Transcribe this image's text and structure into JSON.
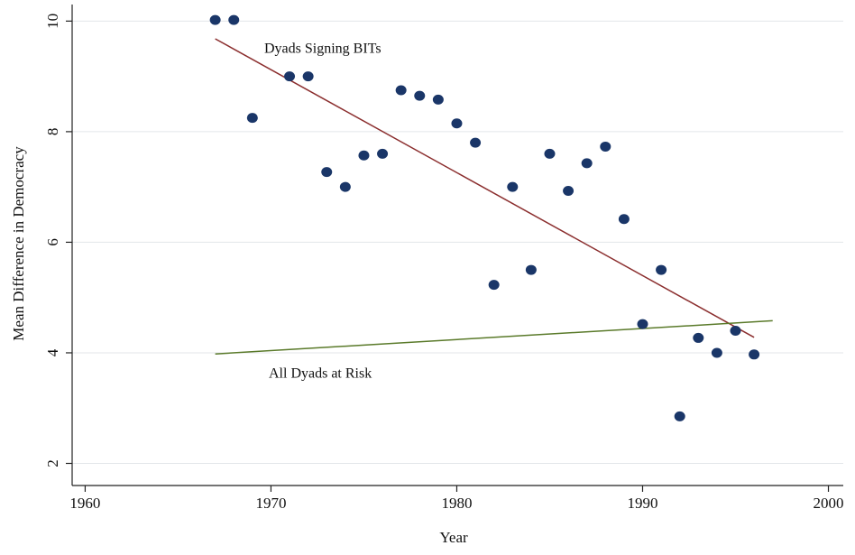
{
  "chart_data": {
    "type": "scatter",
    "x_label": "Year",
    "y_label": "Mean Difference in Democracy",
    "x": [
      1967,
      1968,
      1969,
      1971,
      1972,
      1973,
      1974,
      1975,
      1976,
      1977,
      1978,
      1979,
      1980,
      1981,
      1982,
      1983,
      1984,
      1985,
      1986,
      1987,
      1988,
      1989,
      1990,
      1991,
      1992,
      1993,
      1994,
      1995,
      1996
    ],
    "values": [
      10.02,
      10.02,
      8.25,
      9.0,
      9.0,
      7.27,
      7.0,
      7.57,
      7.6,
      8.75,
      8.65,
      8.58,
      8.15,
      7.8,
      5.23,
      7.0,
      5.5,
      7.6,
      6.93,
      7.43,
      7.73,
      6.42,
      4.52,
      5.5,
      2.85,
      4.27,
      4.0,
      4.4,
      3.97
    ],
    "color": "#1a3668",
    "lines": [
      {
        "x": [
          1967,
          1996
        ],
        "values": [
          9.68,
          4.28
        ],
        "color": "#8b2e2e"
      },
      {
        "x": [
          1967,
          1997
        ],
        "values": [
          3.98,
          4.58
        ],
        "color": "#5a7a2a"
      }
    ],
    "annotations": [
      "Dyads Signing BITs",
      "All Dyads at Risk"
    ],
    "xlim": [
      1959.3,
      2000.8
    ],
    "ylim": [
      1.6,
      10.3
    ],
    "xticks": [
      1960,
      1970,
      1980,
      1990,
      2000
    ],
    "yticks": [
      2,
      4,
      6,
      8,
      10
    ],
    "grid": true
  }
}
